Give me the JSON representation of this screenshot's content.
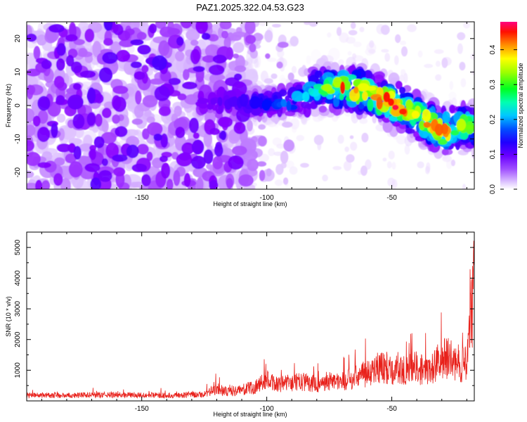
{
  "title": "PAZ1.2025.322.04.53.G23",
  "chart_data": [
    {
      "type": "heatmap",
      "title": "PAZ1.2025.322.04.53.G23",
      "xlabel": "Height of straight line (km)",
      "ylabel": "Frequency (Hz)",
      "xlim": [
        -196,
        -17
      ],
      "ylim": [
        -25,
        25
      ],
      "xticks": [
        -150,
        -100,
        -50
      ],
      "yticks": [
        -20,
        -10,
        0,
        10,
        20
      ],
      "colorbar": {
        "label": "Normalized spectral amplitude",
        "range": [
          0.0,
          0.48
        ],
        "ticks": [
          0.0,
          0.1,
          0.2,
          0.3,
          0.4
        ],
        "colormap": [
          "#ffffff",
          "#d9b8ff",
          "#8800ff",
          "#4a00ff",
          "#0000ff",
          "#0080ff",
          "#00e5ff",
          "#00ff60",
          "#80ff00",
          "#ffff00",
          "#ff8000",
          "#ff0000",
          "#ff0080"
        ]
      },
      "ridge": {
        "description": "main signal band",
        "points": [
          {
            "x": -130,
            "f": 1.0,
            "amp": 0.08
          },
          {
            "x": -110,
            "f": 1.0,
            "amp": 0.12
          },
          {
            "x": -100,
            "f": 0.5,
            "amp": 0.15
          },
          {
            "x": -90,
            "f": 1.5,
            "amp": 0.2
          },
          {
            "x": -80,
            "f": 5.0,
            "amp": 0.25
          },
          {
            "x": -70,
            "f": 5.5,
            "amp": 0.4
          },
          {
            "x": -60,
            "f": 4.0,
            "amp": 0.38
          },
          {
            "x": -50,
            "f": 0.5,
            "amp": 0.45
          },
          {
            "x": -40,
            "f": -3.0,
            "amp": 0.35
          },
          {
            "x": -30,
            "f": -8.0,
            "amp": 0.42
          },
          {
            "x": -20,
            "f": -6.0,
            "amp": 0.3
          }
        ]
      }
    },
    {
      "type": "line",
      "xlabel": "Height of straight line (km)",
      "ylabel": "SNR (10 * v/v)",
      "xlim": [
        -196,
        -17
      ],
      "ylim": [
        0,
        5500
      ],
      "xticks": [
        -150,
        -100,
        -50
      ],
      "yticks": [
        1000,
        2000,
        3000,
        4000,
        5000
      ],
      "color": "#e8201a",
      "series": [
        {
          "name": "SNR",
          "x": [
            -196,
            -180,
            -160,
            -140,
            -125,
            -120,
            -115,
            -110,
            -105,
            -100,
            -95,
            -90,
            -85,
            -80,
            -75,
            -70,
            -65,
            -60,
            -55,
            -50,
            -45,
            -40,
            -35,
            -30,
            -25,
            -20,
            -18,
            -17
          ],
          "y": [
            200,
            200,
            220,
            200,
            230,
            450,
            320,
            400,
            500,
            750,
            600,
            650,
            700,
            600,
            750,
            700,
            850,
            1000,
            1250,
            1150,
            1100,
            1200,
            1000,
            1650,
            1400,
            1300,
            3200,
            5000
          ]
        }
      ]
    }
  ]
}
